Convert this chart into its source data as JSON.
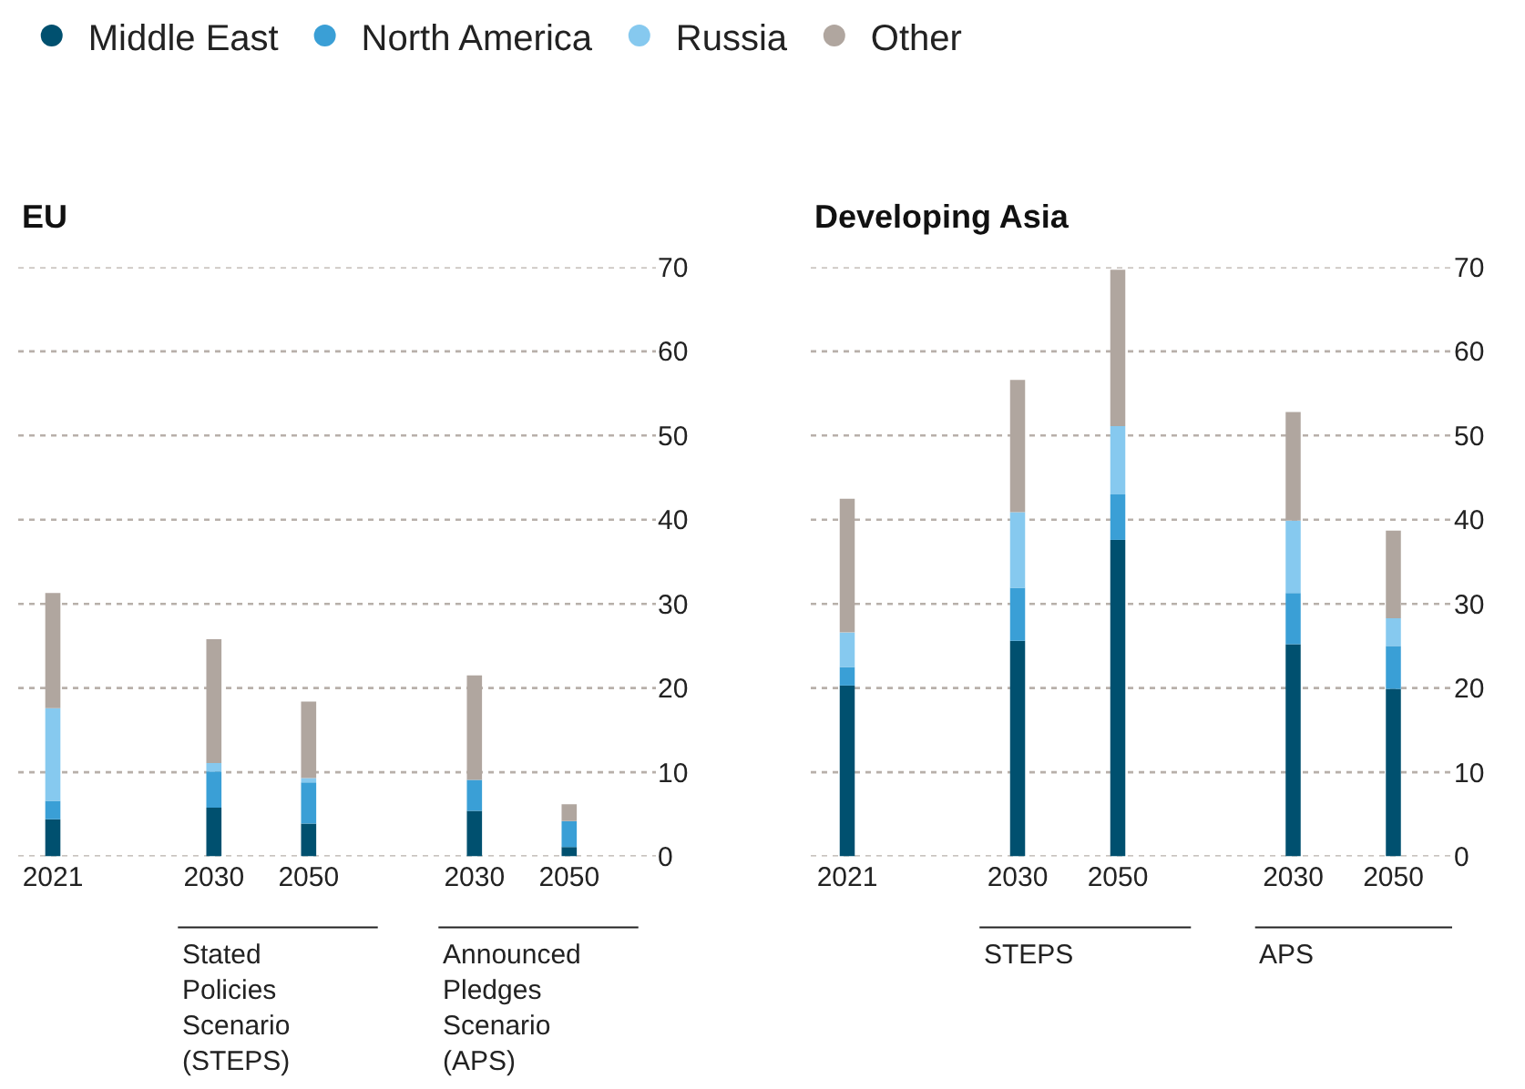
{
  "chart_data": [
    {
      "type": "bar",
      "stacked": true,
      "title": "EU",
      "categories": [
        "2021",
        "2030",
        "2050",
        "2030",
        "2050"
      ],
      "ylim": [
        0,
        70
      ],
      "yticks": [
        0,
        10,
        20,
        30,
        40,
        50,
        60,
        70
      ],
      "grid": "y",
      "legend": "top",
      "marker": "circle",
      "annotations": [
        "Stated Policies Scenario (STEPS)",
        "Announced Pledges Scenario (APS)"
      ],
      "series": [
        {
          "name": "Middle East",
          "color": "#00506f",
          "values": [
            4.4,
            5.8,
            3.9,
            5.4,
            1.1
          ]
        },
        {
          "name": "North America",
          "color": "#3a9fd6",
          "values": [
            2.2,
            4.3,
            4.9,
            3.7,
            3.1
          ]
        },
        {
          "name": "Russia",
          "color": "#86c9ef",
          "values": [
            11.0,
            1.0,
            0.5,
            0,
            0
          ]
        },
        {
          "name": "Other",
          "color": "#b0a69f",
          "values": [
            13.7,
            14.7,
            9.1,
            12.4,
            2.0
          ]
        }
      ]
    },
    {
      "type": "bar",
      "stacked": true,
      "title": "Developing Asia",
      "categories": [
        "2021",
        "2030",
        "2050",
        "2030",
        "2050"
      ],
      "ylim": [
        0,
        70
      ],
      "yticks": [
        0,
        10,
        20,
        30,
        40,
        50,
        60,
        70
      ],
      "grid": "y",
      "annotations": [
        "STEPS",
        "APS"
      ],
      "series": [
        {
          "color": "#00506f",
          "values": [
            20.3,
            25.6,
            37.6,
            25.2,
            19.9
          ]
        },
        {
          "color": "#3a9fd6",
          "values": [
            2.2,
            6.3,
            5.4,
            6.1,
            5.1
          ]
        },
        {
          "color": "#86c9ef",
          "values": [
            4.1,
            9.0,
            8.1,
            8.6,
            3.3
          ]
        },
        {
          "color": "#b0a69f",
          "values": [
            15.9,
            15.7,
            18.6,
            12.9,
            10.4
          ]
        }
      ]
    }
  ]
}
